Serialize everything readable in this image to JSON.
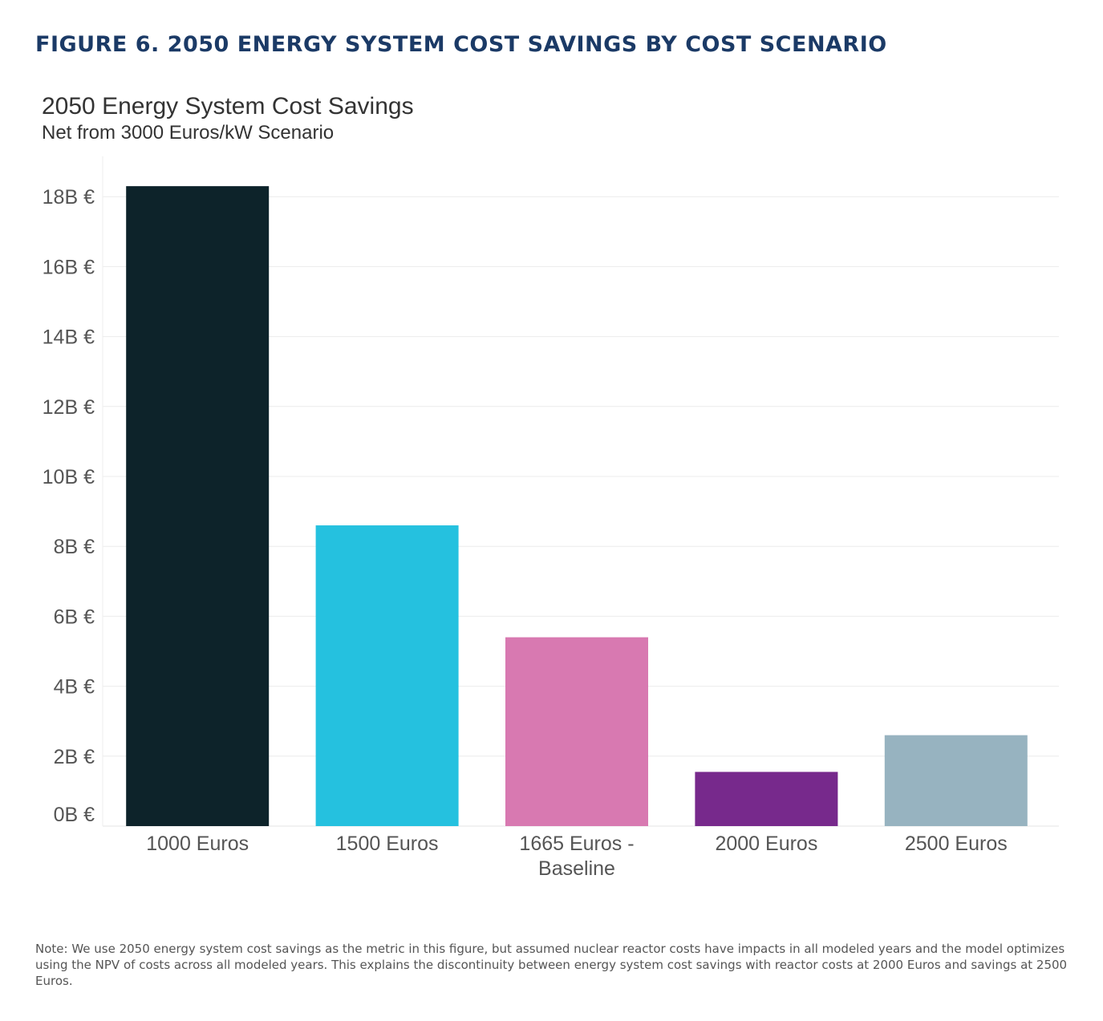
{
  "figure_title": "FIGURE 6. 2050 ENERGY SYSTEM COST SAVINGS BY COST SCENARIO",
  "note": "Note: We use 2050 energy system cost savings as the metric in this figure, but assumed nuclear reactor costs have impacts in all modeled years and the model optimizes using the NPV of costs across all modeled years. This explains the discontinuity between energy system cost savings with reactor costs at 2000 Euros and savings at 2500 Euros.",
  "chart_data": {
    "type": "bar",
    "title": "2050 Energy System Cost Savings",
    "subtitle": "Net from 3000 Euros/kW Scenario",
    "categories": [
      [
        "1000 Euros"
      ],
      [
        "1500 Euros"
      ],
      [
        "1665 Euros -",
        "Baseline"
      ],
      [
        "2000 Euros"
      ],
      [
        "2500 Euros"
      ]
    ],
    "values": [
      18.3,
      8.6,
      5.4,
      1.55,
      2.6
    ],
    "value_unit": "B €",
    "colors": [
      "#0d232a",
      "#25c1df",
      "#d879b1",
      "#77298c",
      "#97b3c0"
    ],
    "ylim": [
      0,
      18.5
    ],
    "yticks": [
      0,
      2,
      4,
      6,
      8,
      10,
      12,
      14,
      16,
      18
    ],
    "ytick_labels": [
      "0B €",
      "2B €",
      "4B €",
      "6B €",
      "8B €",
      "10B €",
      "12B €",
      "14B €",
      "16B €",
      "18B €"
    ],
    "grid": true,
    "legend": "none"
  }
}
